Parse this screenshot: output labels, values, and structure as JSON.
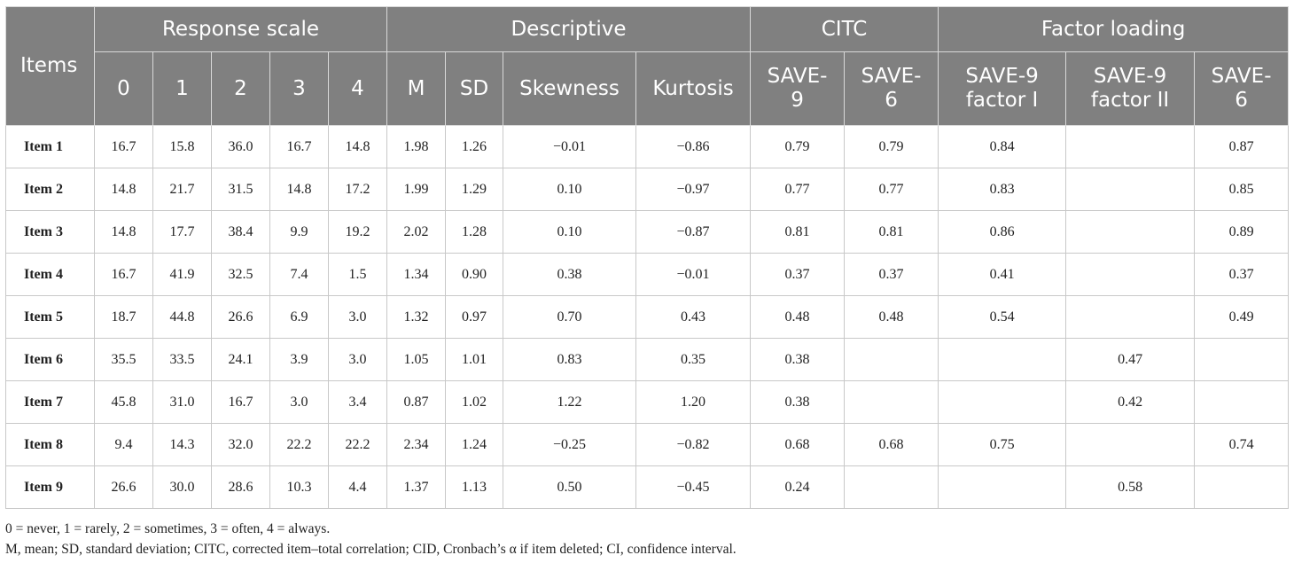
{
  "table": {
    "group_headers": {
      "items": "Items",
      "response_scale": "Response scale",
      "descriptive": "Descriptive",
      "citc": "CITC",
      "factor_loading": "Factor loading"
    },
    "sub_headers": {
      "s0": "0",
      "s1": "1",
      "s2": "2",
      "s3": "3",
      "s4": "4",
      "m": "M",
      "sd": "SD",
      "skewness": "Skewness",
      "kurtosis": "Kurtosis",
      "citc_save9": "SAVE-\n9",
      "citc_save6": "SAVE-\n6",
      "fl_save9_f1": "SAVE-9\nfactor I",
      "fl_save9_f2": "SAVE-9\nfactor II",
      "fl_save6": "SAVE-\n6"
    },
    "rows": [
      {
        "item": "Item 1",
        "s0": "16.7",
        "s1": "15.8",
        "s2": "36.0",
        "s3": "16.7",
        "s4": "14.8",
        "m": "1.98",
        "sd": "1.26",
        "skew": "−0.01",
        "kurt": "−0.86",
        "citc9": "0.79",
        "citc6": "0.79",
        "f1": "0.84",
        "f2": "",
        "fl6": "0.87"
      },
      {
        "item": "Item 2",
        "s0": "14.8",
        "s1": "21.7",
        "s2": "31.5",
        "s3": "14.8",
        "s4": "17.2",
        "m": "1.99",
        "sd": "1.29",
        "skew": "0.10",
        "kurt": "−0.97",
        "citc9": "0.77",
        "citc6": "0.77",
        "f1": "0.83",
        "f2": "",
        "fl6": "0.85"
      },
      {
        "item": "Item 3",
        "s0": "14.8",
        "s1": "17.7",
        "s2": "38.4",
        "s3": "9.9",
        "s4": "19.2",
        "m": "2.02",
        "sd": "1.28",
        "skew": "0.10",
        "kurt": "−0.87",
        "citc9": "0.81",
        "citc6": "0.81",
        "f1": "0.86",
        "f2": "",
        "fl6": "0.89"
      },
      {
        "item": "Item 4",
        "s0": "16.7",
        "s1": "41.9",
        "s2": "32.5",
        "s3": "7.4",
        "s4": "1.5",
        "m": "1.34",
        "sd": "0.90",
        "skew": "0.38",
        "kurt": "−0.01",
        "citc9": "0.37",
        "citc6": "0.37",
        "f1": "0.41",
        "f2": "",
        "fl6": "0.37"
      },
      {
        "item": "Item 5",
        "s0": "18.7",
        "s1": "44.8",
        "s2": "26.6",
        "s3": "6.9",
        "s4": "3.0",
        "m": "1.32",
        "sd": "0.97",
        "skew": "0.70",
        "kurt": "0.43",
        "citc9": "0.48",
        "citc6": "0.48",
        "f1": "0.54",
        "f2": "",
        "fl6": "0.49"
      },
      {
        "item": "Item 6",
        "s0": "35.5",
        "s1": "33.5",
        "s2": "24.1",
        "s3": "3.9",
        "s4": "3.0",
        "m": "1.05",
        "sd": "1.01",
        "skew": "0.83",
        "kurt": "0.35",
        "citc9": "0.38",
        "citc6": "",
        "f1": "",
        "f2": "0.47",
        "fl6": ""
      },
      {
        "item": "Item 7",
        "s0": "45.8",
        "s1": "31.0",
        "s2": "16.7",
        "s3": "3.0",
        "s4": "3.4",
        "m": "0.87",
        "sd": "1.02",
        "skew": "1.22",
        "kurt": "1.20",
        "citc9": "0.38",
        "citc6": "",
        "f1": "",
        "f2": "0.42",
        "fl6": ""
      },
      {
        "item": "Item 8",
        "s0": "9.4",
        "s1": "14.3",
        "s2": "32.0",
        "s3": "22.2",
        "s4": "22.2",
        "m": "2.34",
        "sd": "1.24",
        "skew": "−0.25",
        "kurt": "−0.82",
        "citc9": "0.68",
        "citc6": "0.68",
        "f1": "0.75",
        "f2": "",
        "fl6": "0.74"
      },
      {
        "item": "Item 9",
        "s0": "26.6",
        "s1": "30.0",
        "s2": "28.6",
        "s3": "10.3",
        "s4": "4.4",
        "m": "1.37",
        "sd": "1.13",
        "skew": "0.50",
        "kurt": "−0.45",
        "citc9": "0.24",
        "citc6": "",
        "f1": "",
        "f2": "0.58",
        "fl6": ""
      }
    ]
  },
  "notes": {
    "line1": "0 = never, 1 = rarely, 2 = sometimes, 3 = often, 4 = always.",
    "line2": "M, mean; SD, standard deviation; CITC, corrected item–total correlation; CID, Cronbach’s α if item deleted; CI, confidence interval."
  },
  "colors": {
    "header_bg": "#808080",
    "header_text": "#ffffff",
    "border": "#c8c8c8"
  }
}
